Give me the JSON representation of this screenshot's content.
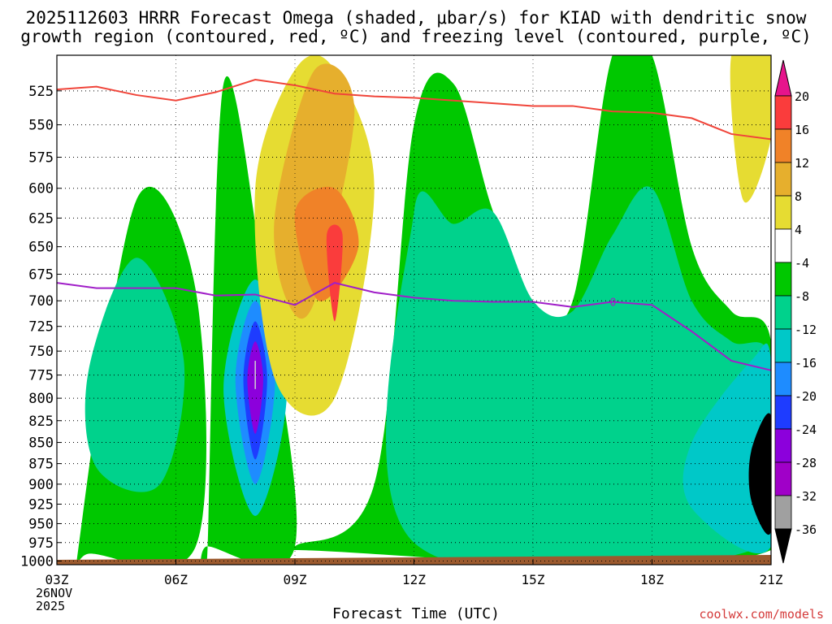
{
  "title_line1": "2025112603 HRRR Forecast Omega (shaded, μbar/s) for KIAD with dendritic snow",
  "title_line2": "growth region (contoured, red, ºC) and freezing level (contoured, purple, ºC)",
  "xlabel": "Forecast Time (UTC)",
  "credit": "coolwx.com/models",
  "date_label": [
    "26NOV",
    "2025"
  ],
  "colors": {
    "dgz_line": "#f0453a",
    "freezing_line": "#a01ec8",
    "terrain": "#9c5a2e",
    "green": "#00c800",
    "teal": "#00d28c",
    "cyan": "#00c8c8",
    "blue": "#1e8cff",
    "dkblue": "#1e3cff",
    "purple": "#8c00dc",
    "magenta": "#a000c8",
    "yellow": "#e6dc32",
    "gold": "#e6af2d",
    "orange": "#f08228",
    "red": "#fa3c3c",
    "gray": "#a0a0a0",
    "black": "#000000"
  },
  "chart_data": {
    "type": "heatmap",
    "x_ticks": [
      "03Z",
      "06Z",
      "09Z",
      "12Z",
      "15Z",
      "18Z",
      "21Z"
    ],
    "x_hours": [
      3,
      6,
      9,
      12,
      15,
      18,
      21
    ],
    "xlim": [
      3,
      21
    ],
    "y_label_levels": [
      1000,
      975,
      950,
      925,
      900,
      875,
      850,
      825,
      800,
      775,
      750,
      725,
      700,
      675,
      650,
      625,
      600,
      575,
      550,
      525
    ],
    "ylim_hpa": [
      1005,
      500
    ],
    "colorbar_labels": [
      "20",
      "16",
      "12",
      "8",
      "4",
      "-4",
      "-8",
      "-12",
      "-16",
      "-20",
      "-24",
      "-28",
      "-32",
      "-36"
    ],
    "colorbar_colors": [
      "#fa3c3c",
      "#f08228",
      "#e6af2d",
      "#e6dc32",
      "#ffffff",
      "#00c800",
      "#00d28c",
      "#00c8c8",
      "#1e8cff",
      "#1e3cff",
      "#8c00dc",
      "#a000c8",
      "#a0a0a0"
    ],
    "freezing_level_label": "0",
    "dgz_top_line": {
      "hours": [
        3,
        4,
        5,
        6,
        7,
        8,
        9,
        10,
        11,
        12,
        13,
        14,
        15,
        16,
        17,
        18,
        19,
        20,
        21
      ],
      "hpa": [
        524,
        522,
        528,
        532,
        526,
        517,
        521,
        527,
        529,
        530,
        532,
        534,
        536,
        536,
        540,
        541,
        545,
        557,
        561
      ]
    },
    "freezing_line": {
      "hours": [
        3,
        4,
        5,
        6,
        7,
        8,
        9,
        10,
        11,
        12,
        13,
        14,
        15,
        16,
        17,
        18,
        19,
        20,
        21
      ],
      "hpa": [
        683,
        688,
        688,
        688,
        695,
        694,
        704,
        683,
        692,
        697,
        700,
        701,
        701,
        706,
        701,
        704,
        730,
        760,
        770
      ]
    },
    "omega_regions": [
      {
        "band": "-8 to -4",
        "color": "green",
        "hours": [
          3.5,
          5.0,
          6.5,
          6.5,
          3.8
        ],
        "hpa": [
          1000,
          610,
          690,
          980,
          990
        ]
      },
      {
        "band": "-8 to -4",
        "color": "green",
        "hours": [
          6.8,
          7.2,
          8.2,
          9.0,
          6.8
        ],
        "hpa": [
          980,
          520,
          680,
          980,
          980
        ]
      },
      {
        "band": "-8 to -4",
        "color": "green",
        "hours": [
          9,
          11,
          12,
          13,
          14,
          15,
          16,
          17,
          18,
          19,
          20,
          21,
          21,
          9
        ],
        "hpa": [
          980,
          900,
          550,
          520,
          620,
          700,
          700,
          500,
          500,
          650,
          710,
          740,
          985,
          985
        ]
      },
      {
        "band": "-12 to -8",
        "color": "teal",
        "hours": [
          3.8,
          5.0,
          6.2,
          5.6,
          4.0
        ],
        "hpa": [
          770,
          660,
          760,
          900,
          880
        ]
      },
      {
        "band": "-12 to -8",
        "color": "teal",
        "hours": [
          12,
          13,
          14,
          15,
          16,
          17,
          18,
          19,
          20,
          21,
          21,
          12
        ],
        "hpa": [
          620,
          630,
          620,
          700,
          710,
          640,
          600,
          700,
          740,
          760,
          975,
          975
        ]
      },
      {
        "band": "-16 to -12",
        "color": "cyan",
        "hours": [
          7.2,
          8.0,
          8.8,
          8.0
        ],
        "hpa": [
          790,
          680,
          790,
          940
        ]
      },
      {
        "band": "-16 to -12",
        "color": "cyan",
        "hours": [
          19.0,
          20.5,
          21,
          21,
          19.0
        ],
        "hpa": [
          850,
          760,
          760,
          980,
          930
        ]
      },
      {
        "band": "-20 to -16",
        "color": "blue",
        "hours": [
          7.5,
          8.0,
          8.5,
          8.0
        ],
        "hpa": [
          780,
          700,
          780,
          900
        ]
      },
      {
        "band": "-24 to -20",
        "color": "dkblue",
        "hours": [
          7.7,
          8.0,
          8.3,
          8.0
        ],
        "hpa": [
          780,
          720,
          780,
          870
        ]
      },
      {
        "band": "-28 to -24",
        "color": "purple",
        "hours": [
          7.8,
          8.0,
          8.2,
          8.0
        ],
        "hpa": [
          780,
          740,
          780,
          840
        ]
      },
      {
        "band": "-32 and below",
        "color": "black",
        "hours": [
          20.5,
          21,
          21,
          20.5
        ],
        "hpa": [
          860,
          820,
          960,
          920
        ]
      },
      {
        "band": "4 to 8",
        "color": "yellow",
        "hours": [
          8,
          9,
          10,
          11,
          10,
          8.5
        ],
        "hpa": [
          600,
          510,
          510,
          600,
          800,
          780
        ]
      },
      {
        "band": "8 to 12",
        "color": "gold",
        "hours": [
          8.5,
          9.5,
          10.5,
          9.5,
          8.8
        ],
        "hpa": [
          620,
          510,
          540,
          700,
          700
        ]
      },
      {
        "band": "12 to 16",
        "color": "orange",
        "hours": [
          9,
          10,
          10.6,
          9.6
        ],
        "hpa": [
          620,
          600,
          650,
          700
        ]
      },
      {
        "band": "16 to 20",
        "color": "red",
        "hours": [
          9.8,
          10.2,
          10.0
        ],
        "hpa": [
          640,
          640,
          720
        ]
      },
      {
        "band": "4 to 8",
        "color": "yellow",
        "hours": [
          20,
          21,
          21,
          20.3
        ],
        "hpa": [
          500,
          500,
          560,
          610
        ]
      }
    ]
  }
}
